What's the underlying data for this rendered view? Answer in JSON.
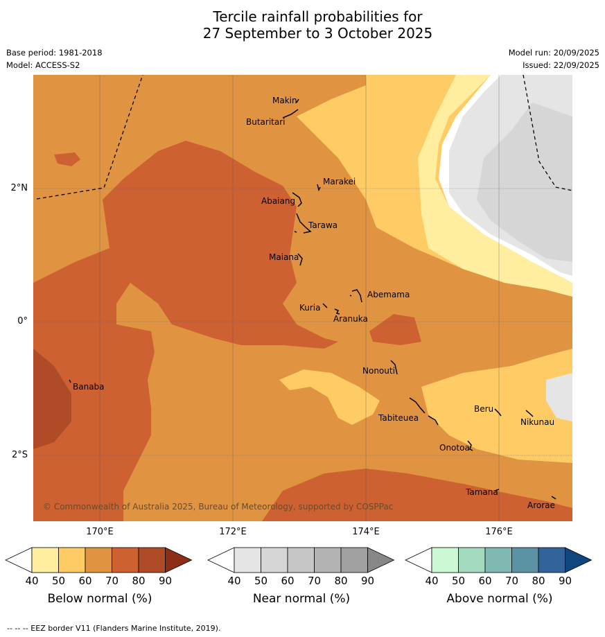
{
  "title": {
    "line1": "Tercile rainfall probabilities for",
    "line2": "27 September to 3 October 2025"
  },
  "meta": {
    "base_period": "Base period: 1981-2018",
    "model": "Model: ACCESS-S2",
    "model_run": "Model run: 20/09/2025",
    "issued": "Issued: 22/09/2025"
  },
  "map": {
    "x_ticks": [
      "170°E",
      "172°E",
      "174°E",
      "176°E"
    ],
    "y_ticks": [
      "2°N",
      "0°",
      "2°S"
    ],
    "copyright": "© Commonwealth of Australia 2025, Bureau of Meteorology, supported by COSPPac",
    "islands": [
      "Makin",
      "Butaritari",
      "Marakei",
      "Abaiang",
      "Tarawa",
      "Maiana",
      "Abemama",
      "Kuria",
      "Aranuka",
      "Nonouti",
      "Banaba",
      "Tabiteuea",
      "Beru",
      "Nikunau",
      "Onotoa",
      "Tamana",
      "Arorae"
    ]
  },
  "colorbars": [
    {
      "label": "Below normal (%)",
      "ticks": [
        "40",
        "50",
        "60",
        "70",
        "80",
        "90"
      ],
      "colors": [
        "#ffffff",
        "#ffeda0",
        "#fecb65",
        "#e09441",
        "#cd6132",
        "#b04b27",
        "#8c2d16"
      ]
    },
    {
      "label": "Near normal (%)",
      "ticks": [
        "40",
        "50",
        "60",
        "70",
        "80",
        "90"
      ],
      "colors": [
        "#ffffff",
        "#e5e5e5",
        "#d6d6d6",
        "#c6c6c6",
        "#b3b3b3",
        "#a0a0a0",
        "#878787"
      ]
    },
    {
      "label": "Above normal (%)",
      "ticks": [
        "40",
        "50",
        "60",
        "70",
        "80",
        "90"
      ],
      "colors": [
        "#ffffff",
        "#ccf9d4",
        "#a4dbc0",
        "#80b8b2",
        "#5b93a5",
        "#32649b",
        "#11457d"
      ]
    }
  ],
  "footer": "--  --  -- EEZ border V11 (Flanders Marine Institute, 2019)."
}
